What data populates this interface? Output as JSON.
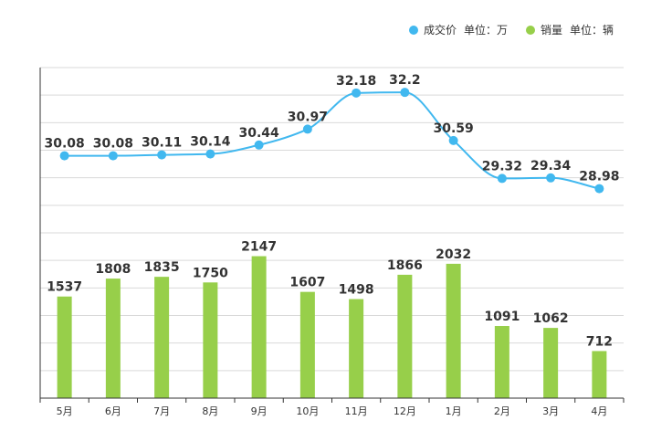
{
  "legend": {
    "price": {
      "name": "成交价",
      "unit": "单位：万"
    },
    "volume": {
      "name": "销量",
      "unit": "单位：辆"
    }
  },
  "colors": {
    "price": "#41b8ef",
    "volume": "#97cf4a",
    "grid": "#d9d9d9",
    "axis": "#333333"
  },
  "chart_data": {
    "type": "bar+line",
    "categories": [
      "5月",
      "6月",
      "7月",
      "8月",
      "9月",
      "10月",
      "11月",
      "12月",
      "1月",
      "2月",
      "3月",
      "4月"
    ],
    "series": [
      {
        "name": "成交价",
        "unit": "万",
        "type": "line",
        "values": [
          30.08,
          30.08,
          30.11,
          30.14,
          30.44,
          30.97,
          32.18,
          32.2,
          30.59,
          29.32,
          29.34,
          28.98
        ],
        "labels": [
          "30.08",
          "30.08",
          "30.11",
          "30.14",
          "30.44",
          "30.97",
          "32.18",
          "32.2",
          "30.59",
          "29.32",
          "29.34",
          "28.98"
        ]
      },
      {
        "name": "销量",
        "unit": "辆",
        "type": "bar",
        "values": [
          1537,
          1808,
          1835,
          1750,
          2147,
          1607,
          1498,
          1866,
          2032,
          1091,
          1062,
          712
        ],
        "labels": [
          "1537",
          "1808",
          "1835",
          "1750",
          "2147",
          "1607",
          "1498",
          "1866",
          "2032",
          "1091",
          "1062",
          "712"
        ]
      }
    ],
    "price_axis_range": [
      27.5,
      33.0
    ],
    "volume_axis_range": [
      0,
      2500
    ],
    "grid": true,
    "legend_position": "top-right"
  }
}
